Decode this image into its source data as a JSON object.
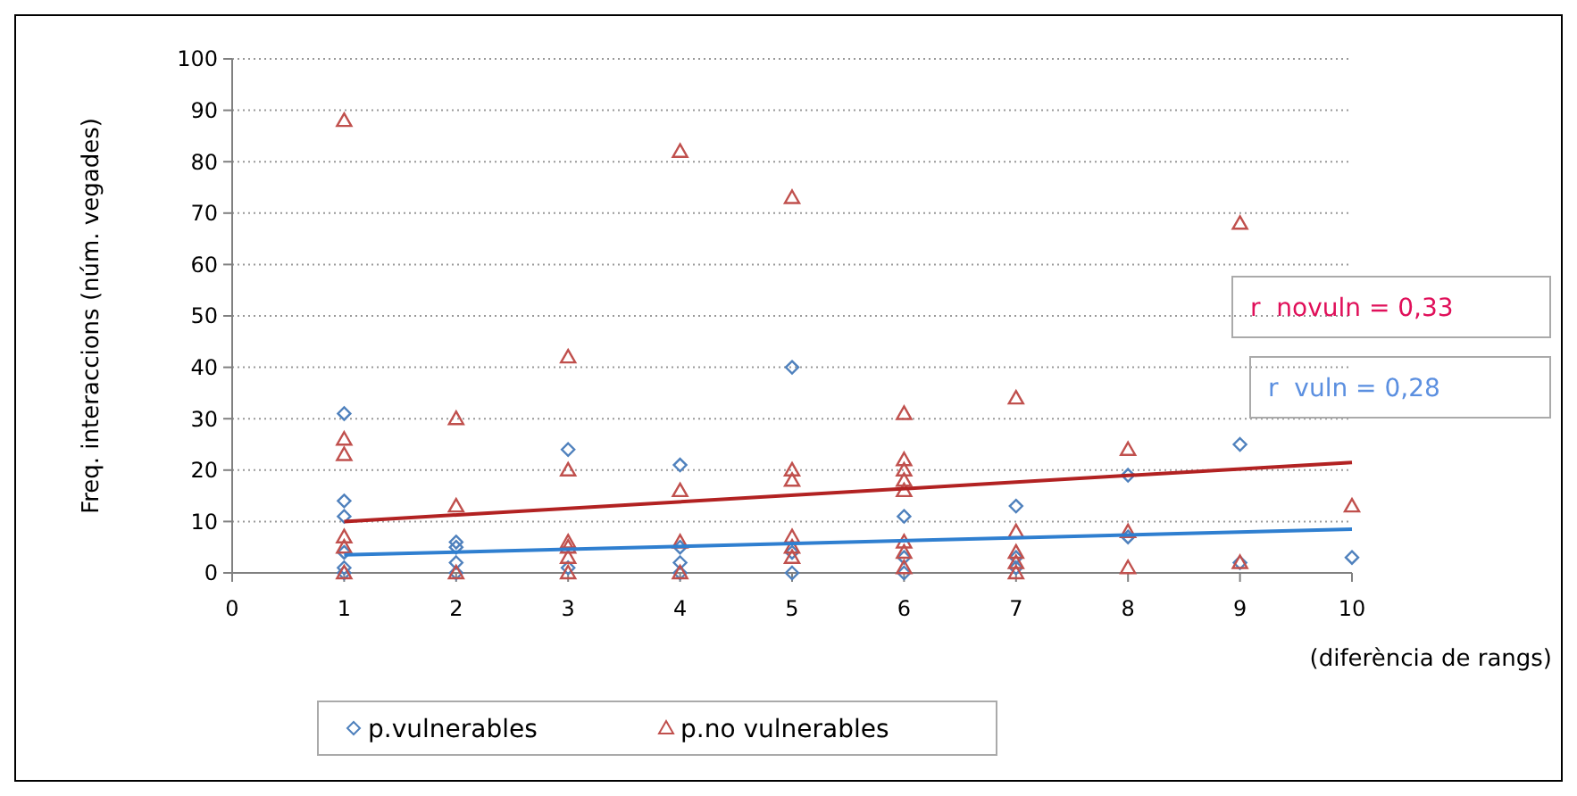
{
  "chart_data": {
    "type": "scatter",
    "xlabel": "(diferència de rangs)",
    "ylabel": "Freq. interaccions (núm. vegades)",
    "xlim": [
      0,
      10
    ],
    "xticks": [
      0,
      1,
      2,
      3,
      4,
      5,
      6,
      7,
      8,
      9,
      10
    ],
    "ylim": [
      0,
      100
    ],
    "yticks": [
      0,
      10,
      20,
      30,
      40,
      50,
      60,
      70,
      80,
      90,
      100
    ],
    "grid": "y",
    "legend": "bottom",
    "annotations": [
      "r  novuln = 0,33",
      "r  vuln = 0,28"
    ],
    "series": [
      {
        "name": "p.vulnerables",
        "color": "#4f81bd",
        "marker": "diamond",
        "x": [
          1,
          1,
          1,
          1,
          1,
          1,
          2,
          2,
          2,
          2,
          3,
          3,
          4,
          4,
          4,
          4,
          5,
          5,
          5,
          6,
          6,
          6,
          7,
          7,
          7,
          8,
          8,
          9,
          9,
          10
        ],
        "values": [
          31,
          14,
          11,
          4,
          1,
          0,
          6,
          5,
          2,
          0,
          24,
          1,
          21,
          5,
          2,
          0,
          40,
          4,
          0,
          11,
          3,
          0,
          13,
          3,
          1,
          19,
          7,
          25,
          2,
          3
        ]
      },
      {
        "name": "p.no vulnerables",
        "color": "#c0504d",
        "marker": "triangle",
        "x": [
          1,
          1,
          1,
          1,
          1,
          1,
          2,
          2,
          2,
          3,
          3,
          3,
          3,
          3,
          3,
          4,
          4,
          4,
          4,
          5,
          5,
          5,
          5,
          5,
          5,
          6,
          6,
          6,
          6,
          6,
          6,
          6,
          6,
          7,
          7,
          7,
          7,
          7,
          8,
          8,
          8,
          9,
          9,
          10
        ],
        "values": [
          88,
          26,
          23,
          7,
          5,
          0,
          30,
          13,
          0,
          42,
          20,
          6,
          5,
          3,
          0,
          82,
          16,
          6,
          0,
          73,
          20,
          18,
          7,
          5,
          3,
          31,
          22,
          20,
          18,
          16,
          6,
          4,
          1,
          34,
          8,
          4,
          2,
          0,
          24,
          8,
          1,
          68,
          2,
          13
        ]
      },
      {
        "type": "line",
        "color": "#b22222",
        "x": [
          1,
          10
        ],
        "values": [
          10,
          21.5
        ]
      },
      {
        "type": "line",
        "color": "#2f7fd0",
        "x": [
          1,
          10
        ],
        "values": [
          3.5,
          8.5
        ]
      }
    ]
  }
}
